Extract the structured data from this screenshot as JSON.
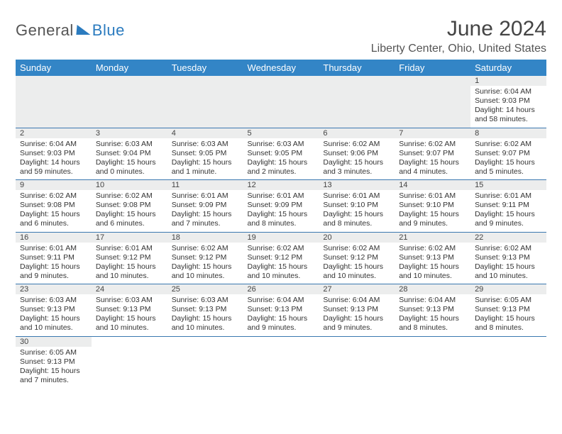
{
  "brand": {
    "part1": "General",
    "part2": "Blue"
  },
  "title": "June 2024",
  "location": "Liberty Center, Ohio, United States",
  "colors": {
    "header_bg": "#3385c6",
    "header_text": "#ffffff",
    "daynum_bg": "#eceded",
    "border": "#3b78b0",
    "brand_blue": "#2b7bbf",
    "text": "#333333",
    "title_text": "#444444"
  },
  "typography": {
    "title_fontsize": 30,
    "location_fontsize": 16,
    "dayheader_fontsize": 13,
    "cell_fontsize": 10.5,
    "daynum_fontsize": 11
  },
  "day_headers": [
    "Sunday",
    "Monday",
    "Tuesday",
    "Wednesday",
    "Thursday",
    "Friday",
    "Saturday"
  ],
  "weeks": [
    [
      null,
      null,
      null,
      null,
      null,
      null,
      {
        "n": "1",
        "sr": "Sunrise: 6:04 AM",
        "ss": "Sunset: 9:03 PM",
        "dl": "Daylight: 14 hours and 58 minutes."
      }
    ],
    [
      {
        "n": "2",
        "sr": "Sunrise: 6:04 AM",
        "ss": "Sunset: 9:03 PM",
        "dl": "Daylight: 14 hours and 59 minutes."
      },
      {
        "n": "3",
        "sr": "Sunrise: 6:03 AM",
        "ss": "Sunset: 9:04 PM",
        "dl": "Daylight: 15 hours and 0 minutes."
      },
      {
        "n": "4",
        "sr": "Sunrise: 6:03 AM",
        "ss": "Sunset: 9:05 PM",
        "dl": "Daylight: 15 hours and 1 minute."
      },
      {
        "n": "5",
        "sr": "Sunrise: 6:03 AM",
        "ss": "Sunset: 9:05 PM",
        "dl": "Daylight: 15 hours and 2 minutes."
      },
      {
        "n": "6",
        "sr": "Sunrise: 6:02 AM",
        "ss": "Sunset: 9:06 PM",
        "dl": "Daylight: 15 hours and 3 minutes."
      },
      {
        "n": "7",
        "sr": "Sunrise: 6:02 AM",
        "ss": "Sunset: 9:07 PM",
        "dl": "Daylight: 15 hours and 4 minutes."
      },
      {
        "n": "8",
        "sr": "Sunrise: 6:02 AM",
        "ss": "Sunset: 9:07 PM",
        "dl": "Daylight: 15 hours and 5 minutes."
      }
    ],
    [
      {
        "n": "9",
        "sr": "Sunrise: 6:02 AM",
        "ss": "Sunset: 9:08 PM",
        "dl": "Daylight: 15 hours and 6 minutes."
      },
      {
        "n": "10",
        "sr": "Sunrise: 6:02 AM",
        "ss": "Sunset: 9:08 PM",
        "dl": "Daylight: 15 hours and 6 minutes."
      },
      {
        "n": "11",
        "sr": "Sunrise: 6:01 AM",
        "ss": "Sunset: 9:09 PM",
        "dl": "Daylight: 15 hours and 7 minutes."
      },
      {
        "n": "12",
        "sr": "Sunrise: 6:01 AM",
        "ss": "Sunset: 9:09 PM",
        "dl": "Daylight: 15 hours and 8 minutes."
      },
      {
        "n": "13",
        "sr": "Sunrise: 6:01 AM",
        "ss": "Sunset: 9:10 PM",
        "dl": "Daylight: 15 hours and 8 minutes."
      },
      {
        "n": "14",
        "sr": "Sunrise: 6:01 AM",
        "ss": "Sunset: 9:10 PM",
        "dl": "Daylight: 15 hours and 9 minutes."
      },
      {
        "n": "15",
        "sr": "Sunrise: 6:01 AM",
        "ss": "Sunset: 9:11 PM",
        "dl": "Daylight: 15 hours and 9 minutes."
      }
    ],
    [
      {
        "n": "16",
        "sr": "Sunrise: 6:01 AM",
        "ss": "Sunset: 9:11 PM",
        "dl": "Daylight: 15 hours and 9 minutes."
      },
      {
        "n": "17",
        "sr": "Sunrise: 6:01 AM",
        "ss": "Sunset: 9:12 PM",
        "dl": "Daylight: 15 hours and 10 minutes."
      },
      {
        "n": "18",
        "sr": "Sunrise: 6:02 AM",
        "ss": "Sunset: 9:12 PM",
        "dl": "Daylight: 15 hours and 10 minutes."
      },
      {
        "n": "19",
        "sr": "Sunrise: 6:02 AM",
        "ss": "Sunset: 9:12 PM",
        "dl": "Daylight: 15 hours and 10 minutes."
      },
      {
        "n": "20",
        "sr": "Sunrise: 6:02 AM",
        "ss": "Sunset: 9:12 PM",
        "dl": "Daylight: 15 hours and 10 minutes."
      },
      {
        "n": "21",
        "sr": "Sunrise: 6:02 AM",
        "ss": "Sunset: 9:13 PM",
        "dl": "Daylight: 15 hours and 10 minutes."
      },
      {
        "n": "22",
        "sr": "Sunrise: 6:02 AM",
        "ss": "Sunset: 9:13 PM",
        "dl": "Daylight: 15 hours and 10 minutes."
      }
    ],
    [
      {
        "n": "23",
        "sr": "Sunrise: 6:03 AM",
        "ss": "Sunset: 9:13 PM",
        "dl": "Daylight: 15 hours and 10 minutes."
      },
      {
        "n": "24",
        "sr": "Sunrise: 6:03 AM",
        "ss": "Sunset: 9:13 PM",
        "dl": "Daylight: 15 hours and 10 minutes."
      },
      {
        "n": "25",
        "sr": "Sunrise: 6:03 AM",
        "ss": "Sunset: 9:13 PM",
        "dl": "Daylight: 15 hours and 10 minutes."
      },
      {
        "n": "26",
        "sr": "Sunrise: 6:04 AM",
        "ss": "Sunset: 9:13 PM",
        "dl": "Daylight: 15 hours and 9 minutes."
      },
      {
        "n": "27",
        "sr": "Sunrise: 6:04 AM",
        "ss": "Sunset: 9:13 PM",
        "dl": "Daylight: 15 hours and 9 minutes."
      },
      {
        "n": "28",
        "sr": "Sunrise: 6:04 AM",
        "ss": "Sunset: 9:13 PM",
        "dl": "Daylight: 15 hours and 8 minutes."
      },
      {
        "n": "29",
        "sr": "Sunrise: 6:05 AM",
        "ss": "Sunset: 9:13 PM",
        "dl": "Daylight: 15 hours and 8 minutes."
      }
    ],
    [
      {
        "n": "30",
        "sr": "Sunrise: 6:05 AM",
        "ss": "Sunset: 9:13 PM",
        "dl": "Daylight: 15 hours and 7 minutes."
      },
      null,
      null,
      null,
      null,
      null,
      null
    ]
  ]
}
